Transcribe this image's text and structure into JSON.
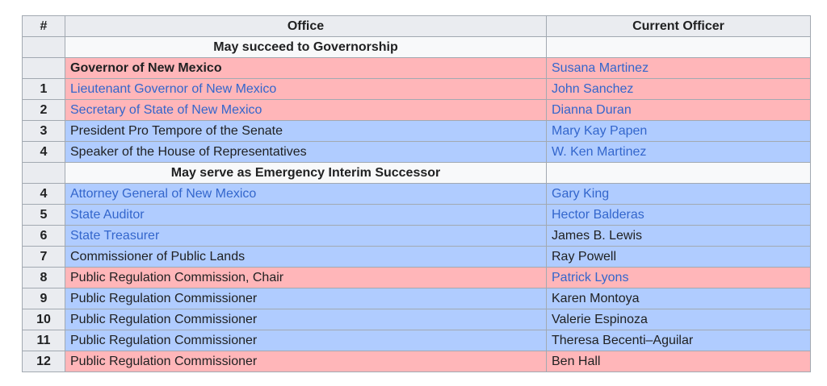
{
  "table": {
    "headers": {
      "num": "#",
      "office": "Office",
      "officer": "Current Officer"
    },
    "sections": {
      "governorship": "May succeed to Governorship",
      "interim": "May serve as Emergency Interim Successor"
    },
    "party_colors": {
      "republican": "#ffb6b9",
      "democratic": "#b0ccff"
    },
    "rows": [
      {
        "num": "",
        "office": "Governor of New Mexico",
        "officer": "Susana Martinez",
        "party": "republican"
      },
      {
        "num": "1",
        "office": "Lieutenant Governor of New Mexico",
        "officer": "John Sanchez",
        "party": "republican"
      },
      {
        "num": "2",
        "office": "Secretary of State of New Mexico",
        "officer": "Dianna Duran",
        "party": "republican"
      },
      {
        "num": "3",
        "office": "President Pro Tempore of the Senate",
        "officer": "Mary Kay Papen",
        "party": "democratic"
      },
      {
        "num": "4",
        "office": "Speaker of the House of Representatives",
        "officer": "W. Ken Martinez",
        "party": "democratic"
      },
      {
        "num": "4",
        "office": "Attorney General of New Mexico",
        "officer": "Gary King",
        "party": "democratic"
      },
      {
        "num": "5",
        "office": "State Auditor",
        "officer": "Hector Balderas",
        "party": "democratic"
      },
      {
        "num": "6",
        "office": "State Treasurer",
        "officer": "James B. Lewis",
        "party": "democratic"
      },
      {
        "num": "7",
        "office": "Commissioner of Public Lands",
        "officer": "Ray Powell",
        "party": "democratic"
      },
      {
        "num": "8",
        "office": "Public Regulation Commission, Chair",
        "officer": "Patrick Lyons",
        "party": "republican"
      },
      {
        "num": "9",
        "office": "Public Regulation Commissioner",
        "officer": "Karen Montoya",
        "party": "democratic"
      },
      {
        "num": "10",
        "office": "Public Regulation Commissioner",
        "officer": "Valerie Espinoza",
        "party": "democratic"
      },
      {
        "num": "11",
        "office": "Public Regulation Commissioner",
        "officer": "Theresa Becenti–Aguilar",
        "party": "democratic"
      },
      {
        "num": "12",
        "office": "Public Regulation Commissioner",
        "officer": "Ben Hall",
        "party": "republican"
      }
    ]
  }
}
